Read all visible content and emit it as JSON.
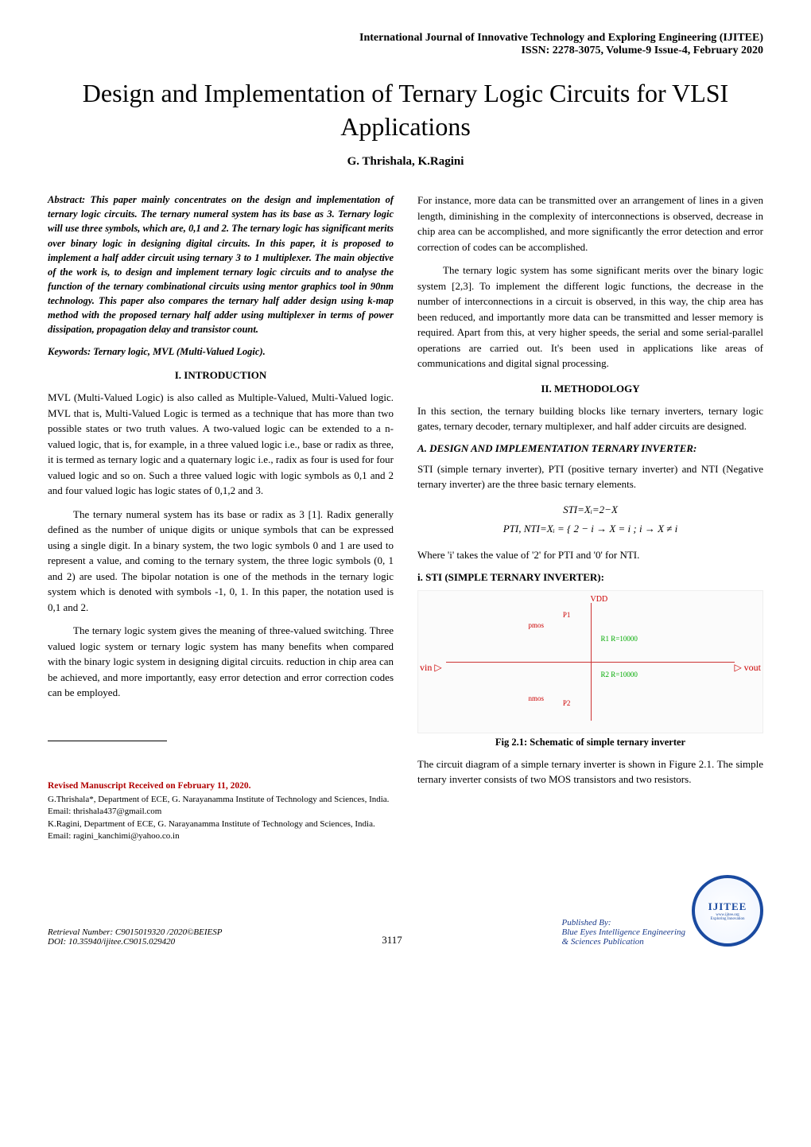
{
  "header": {
    "journal": "International Journal of Innovative Technology and Exploring Engineering (IJITEE)",
    "issn": "ISSN: 2278-3075, Volume-9 Issue-4, February 2020"
  },
  "title": "Design and Implementation of Ternary Logic Circuits for VLSI Applications",
  "authors": "G. Thrishala, K.Ragini",
  "abstract_label": "Abstract:",
  "abstract_text": " This paper mainly concentrates on the design and implementation of ternary logic circuits. The ternary numeral system has its base as 3. Ternary logic will use three symbols, which are, 0,1 and 2. The ternary logic has significant merits over binary logic in designing digital circuits. In this paper, it is proposed to implement a half adder circuit using ternary 3 to 1 multiplexer. The main objective of the work is, to design and implement ternary logic circuits and to analyse the function of the ternary combinational circuits using mentor graphics tool in 90nm technology. This paper also compares the ternary half adder design using k-map method with the proposed ternary half adder using multiplexer in terms of power dissipation, propagation delay and transistor count.",
  "keywords_label": "Keywords:",
  "keywords_text": " Ternary logic, MVL (Multi-Valued Logic).",
  "sections": {
    "intro_heading": "I.    INTRODUCTION",
    "intro_p1": "MVL (Multi-Valued Logic) is also called as Multiple-Valued, Multi-Valued logic. MVL that is, Multi-Valued Logic is termed as a technique that has more than two possible states or two truth values. A two-valued logic can be extended to a n-valued logic, that is, for example, in a three valued logic i.e., base or radix as three, it is termed as ternary logic and a quaternary logic i.e., radix as four is used for four valued logic and so on. Such a three valued logic with logic symbols as 0,1 and 2 and four valued logic has logic states of 0,1,2 and 3.",
    "intro_p2": "The ternary numeral system has its base or radix as 3 [1]. Radix generally defined as the number of unique digits or unique symbols that can be expressed using a single digit. In a binary system, the two logic symbols 0 and 1 are used to represent a value, and coming to the ternary system, the three logic symbols (0, 1 and 2) are used. The bipolar notation is one of the methods in the ternary logic system which is denoted with symbols -1, 0, 1. In this paper, the notation used is 0,1 and 2.",
    "intro_p3": "The ternary logic system gives the meaning of three-valued switching. Three valued logic system or ternary logic system has many benefits when compared with the binary logic system in designing digital circuits. reduction in chip area can be achieved, and more importantly, easy error detection and error correction codes can be employed.",
    "right_p1": " For instance, more data can be transmitted over an arrangement of lines in a given length, diminishing in the complexity of interconnections is observed, decrease in chip area can be accomplished, and more significantly the error detection and error correction of codes can be accomplished.",
    "right_p2": "The ternary logic system has some significant merits over the binary logic system [2,3]. To implement the different logic functions, the decrease in the number of interconnections in a circuit is observed, in this way, the chip area has been reduced, and importantly more data can be transmitted and lesser memory is required. Apart from this, at very higher speeds, the serial and some serial-parallel operations are carried out. It's been used in applications like areas of communications and digital signal processing.",
    "method_heading": "II.    METHODOLOGY",
    "method_p1": "In this section, the ternary building blocks like ternary inverters, ternary logic gates, ternary decoder, ternary multiplexer, and half adder circuits are designed.",
    "sub_a": "A. DESIGN AND IMPLEMENTATION TERNARY INVERTER:",
    "sub_a_p1": "STI (simple ternary inverter), PTI (positive ternary inverter) and NTI (Negative ternary inverter) are the three basic ternary elements.",
    "formula1": "STI=Xᵢ=2−X",
    "formula2": "PTI, NTI=Xᵢ = { 2 − i → X = i ; i → X ≠ i",
    "where_line": "Where 'i' takes the value of '2' for PTI and '0' for NTI.",
    "sub_i": "i. STI (SIMPLE TERNARY INVERTER):",
    "fig_caption": "Fig 2.1: Schematic of simple ternary inverter",
    "after_fig_p": "The circuit diagram of a simple ternary inverter is shown in Figure 2.1. The simple ternary inverter consists of two MOS transistors and two resistors."
  },
  "figure": {
    "vdd": "VDD",
    "vin": "vin ▷",
    "vout": "▷ vout",
    "p1": "P1",
    "pmos": "pmos",
    "r1": "R1\nR=10000",
    "r2": "R2\nR=10000",
    "p2": "P2",
    "nmos": "nmos"
  },
  "manuscript": {
    "received": "Revised Manuscript Received on February 11, 2020.",
    "a1": "G.Thrishala*, Department of ECE, G. Narayanamma Institute of Technology and Sciences, India. Email: thrishala437@gmail.com",
    "a2": "K.Ragini, Department of ECE, G. Narayanamma Institute of Technology and Sciences, India. Email: ragini_kanchimi@yahoo.co.in"
  },
  "footer": {
    "retrieval": "Retrieval Number: C9015019320 /2020©BEIESP",
    "doi": "DOI: 10.35940/ijitee.C9015.029420",
    "page": "3117",
    "pub1": "Published By:",
    "pub2": "Blue Eyes Intelligence Engineering",
    "pub3": "& Sciences Publication",
    "logo_main": "IJITEE",
    "logo_sub": "Exploring Innovation",
    "logo_url": "www.ijitee.org"
  },
  "colors": {
    "heading_red": "#b00000",
    "pub_blue": "#1a3a8a",
    "logo_blue": "#1a4aa0",
    "fig_red": "#c00",
    "fig_green": "#0a0"
  }
}
